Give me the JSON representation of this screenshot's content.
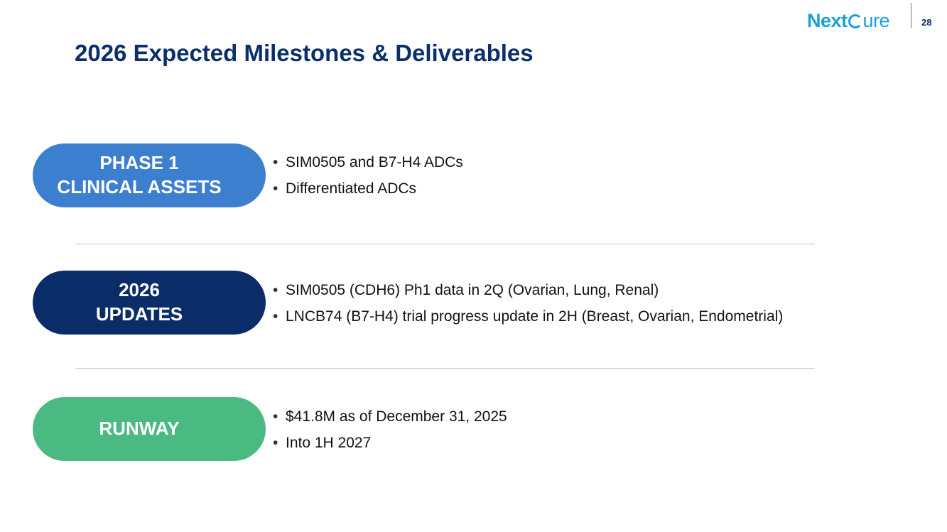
{
  "header": {
    "logo": {
      "part1": "Next",
      "part2": "ure",
      "color": "#1a9fdb"
    },
    "page_number": "28"
  },
  "title": "2026 Expected Milestones & Deliverables",
  "sections": [
    {
      "label_lines": [
        "PHASE 1",
        "CLINICAL ASSETS"
      ],
      "color": "#3d7fcf",
      "bullets": [
        "SIM0505 and B7-H4 ADCs",
        "Differentiated ADCs"
      ]
    },
    {
      "label_lines": [
        "2026",
        "UPDATES"
      ],
      "color": "#0a2d6a",
      "bullets": [
        "SIM0505 (CDH6) Ph1 data in 2Q (Ovarian, Lung, Renal)",
        "LNCB74 (B7-H4) trial progress update in 2H (Breast, Ovarian, Endometrial)"
      ]
    },
    {
      "label_lines": [
        "RUNWAY"
      ],
      "color": "#4bba82",
      "bullets": [
        "$41.8M as of December 31, 2025",
        "Into 1H 2027"
      ]
    }
  ],
  "bullet_glyph": "•"
}
